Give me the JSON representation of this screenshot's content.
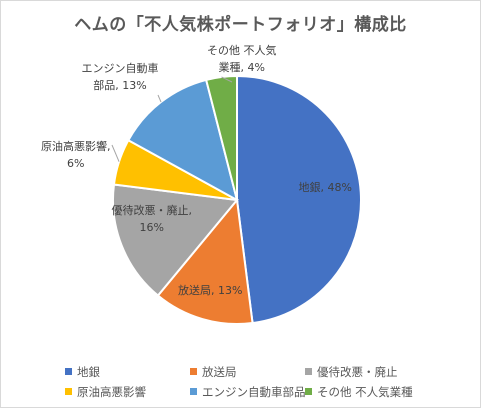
{
  "chart_data": {
    "type": "pie",
    "title": "ヘムの「不人気株ポートフォリオ」構成比",
    "start_angle_deg": 0,
    "direction": "clockwise",
    "legend_position": "bottom",
    "slices": [
      {
        "category": "地銀",
        "value": 48,
        "color": "#4472C4",
        "label_lines": [
          "地銀, 48%"
        ]
      },
      {
        "category": "放送局",
        "value": 13,
        "color": "#ED7D31",
        "label_lines": [
          "放送局, 13%"
        ]
      },
      {
        "category": "優待改悪・廃止",
        "value": 16,
        "color": "#A5A5A5",
        "label_lines": [
          "優待改悪・廃止,",
          "16%"
        ]
      },
      {
        "category": "原油高悪影響",
        "value": 6,
        "color": "#FFC000",
        "label_lines": [
          "原油高悪影響,",
          "6%"
        ]
      },
      {
        "category": "エンジン自動車部品",
        "value": 13,
        "color": "#5B9BD5",
        "label_lines": [
          "エンジン自動車",
          "部品, 13%"
        ]
      },
      {
        "category": "その他 不人気業種",
        "value": 4,
        "color": "#70AD47",
        "label_lines": [
          "その他 不人気",
          "業種, 4%"
        ]
      }
    ]
  }
}
